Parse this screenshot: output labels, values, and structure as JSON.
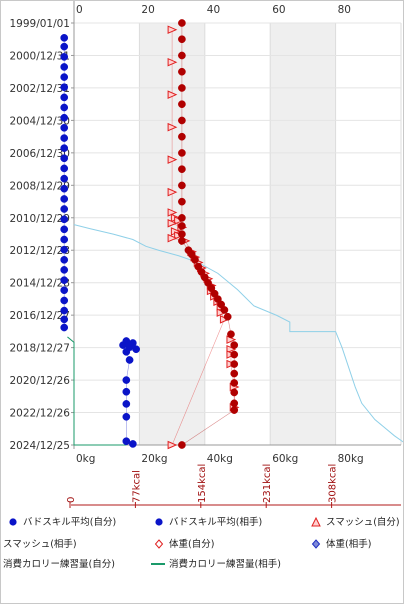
{
  "chart_data": {
    "type": "scatter",
    "x_axis_top": {
      "ticks": [
        "0",
        "20",
        "40",
        "60",
        "80",
        "10"
      ],
      "range": [
        0,
        100
      ]
    },
    "x_axis_bottom": {
      "ticks": [
        "0kg",
        "20kg",
        "40kg",
        "60kg",
        "80kg"
      ],
      "range": [
        0,
        100
      ],
      "unit": "kg"
    },
    "kcal_axis": {
      "ticks": [
        "0",
        "77kcal",
        "154kcal",
        "231kcal",
        "308kcal"
      ]
    },
    "y_axis": {
      "type": "date",
      "ticks": [
        "1999/01/01",
        "2000/12/31",
        "2002/12/31",
        "2004/12/30",
        "2006/12/30",
        "2008/12/29",
        "2010/12/29",
        "2012/12/28",
        "2014/12/28",
        "2016/12/27",
        "2018/12/27",
        "2020/12/26",
        "2022/12/26",
        "2024/12/25"
      ],
      "range": [
        "1999/01/01",
        "2024/12/25"
      ]
    },
    "shaded_bands_x": [
      [
        20,
        40
      ],
      [
        60,
        80
      ]
    ],
    "grid": true,
    "legend_position": "bottom",
    "series": [
      {
        "name": "バドスキル平均(自分)",
        "marker": "circle",
        "color": "#0a14c8",
        "points": [
          [
            -3,
            "1999/12/01"
          ],
          [
            -3,
            "2000/06/15"
          ],
          [
            -3,
            "2001/02/01"
          ],
          [
            -3,
            "2001/09/15"
          ],
          [
            -3,
            "2002/05/01"
          ],
          [
            -3,
            "2002/12/15"
          ],
          [
            -3,
            "2003/08/01"
          ],
          [
            -3,
            "2004/03/15"
          ],
          [
            -3,
            "2004/11/01"
          ],
          [
            -3,
            "2005/06/15"
          ],
          [
            -3,
            "2006/02/01"
          ],
          [
            -3,
            "2006/09/15"
          ],
          [
            -3,
            "2007/05/01"
          ],
          [
            -3,
            "2007/12/15"
          ],
          [
            -3,
            "2008/08/01"
          ],
          [
            -3,
            "2009/03/15"
          ],
          [
            -3,
            "2009/11/01"
          ],
          [
            -3,
            "2010/06/15"
          ],
          [
            -3,
            "2011/02/01"
          ],
          [
            -3,
            "2011/09/15"
          ],
          [
            -3,
            "2012/05/01"
          ],
          [
            -3,
            "2012/12/15"
          ],
          [
            -3,
            "2013/08/01"
          ],
          [
            -3,
            "2014/03/15"
          ],
          [
            -3,
            "2014/11/01"
          ],
          [
            -3,
            "2015/06/15"
          ],
          [
            -3,
            "2016/02/01"
          ],
          [
            -3,
            "2016/09/15"
          ],
          [
            -3,
            "2017/04/01"
          ],
          [
            -3,
            "2017/10/01"
          ]
        ]
      },
      {
        "name": "バドスキル平均(相手)",
        "marker": "circle",
        "color": "#0a14c8",
        "points": [
          [
            16,
            "2018/08/01"
          ],
          [
            18,
            "2018/09/15"
          ],
          [
            15,
            "2018/11/01"
          ],
          [
            17,
            "2018/12/15"
          ],
          [
            19,
            "2019/02/01"
          ],
          [
            16,
            "2019/04/01"
          ],
          [
            17,
            "2019/10/01"
          ],
          [
            16,
            "2020/12/26"
          ],
          [
            16,
            "2021/09/15"
          ],
          [
            16,
            "2022/06/15"
          ],
          [
            16,
            "2023/04/01"
          ],
          [
            16,
            "2024/10/01"
          ],
          [
            18,
            "2024/12/01"
          ]
        ]
      },
      {
        "name": "スマッシュ(自分)",
        "marker": "triangle",
        "color": "#e02020",
        "points": [
          [
            30,
            "1999/06/01"
          ],
          [
            30,
            "2001/06/01"
          ],
          [
            30,
            "2003/06/01"
          ],
          [
            30,
            "2005/06/01"
          ],
          [
            30,
            "2007/06/01"
          ],
          [
            30,
            "2009/06/01"
          ],
          [
            30,
            "2010/09/01"
          ],
          [
            31,
            "2011/01/01"
          ],
          [
            32,
            "2011/03/01"
          ],
          [
            30,
            "2011/05/01"
          ],
          [
            33,
            "2011/08/01"
          ],
          [
            31,
            "2011/11/01"
          ],
          [
            32,
            "2012/02/01"
          ],
          [
            30,
            "2012/04/01"
          ],
          [
            34,
            "2012/06/01"
          ],
          [
            36,
            "2013/02/01"
          ],
          [
            37,
            "2013/06/01"
          ],
          [
            38,
            "2013/10/01"
          ],
          [
            39,
            "2014/02/01"
          ],
          [
            40,
            "2014/06/01"
          ],
          [
            41,
            "2014/10/01"
          ],
          [
            42,
            "2015/03/01"
          ],
          [
            42,
            "2015/07/01"
          ],
          [
            43,
            "2015/11/01"
          ],
          [
            44,
            "2016/03/01"
          ],
          [
            45,
            "2016/07/01"
          ],
          [
            45,
            "2016/11/01"
          ],
          [
            46,
            "2017/04/01"
          ],
          [
            30,
            "2024/12/25"
          ]
        ]
      },
      {
        "name": "スマッシュ(相手)",
        "marker": "triangle",
        "color": "#e02020",
        "points": [
          [
            48,
            "2018/07/01"
          ],
          [
            48,
            "2019/02/01"
          ],
          [
            48,
            "2019/06/01"
          ],
          [
            48,
            "2020/01/01"
          ],
          [
            49,
            "2021/06/01"
          ],
          [
            49,
            "2022/09/01"
          ]
        ]
      },
      {
        "name": "体重(自分)",
        "marker": "circle",
        "color": "#b00000",
        "points": [
          [
            33,
            "1999/01/01"
          ],
          [
            33,
            "2000/01/01"
          ],
          [
            33,
            "2001/01/01"
          ],
          [
            33,
            "2002/01/01"
          ],
          [
            33,
            "2003/01/01"
          ],
          [
            33,
            "2004/01/01"
          ],
          [
            33,
            "2005/01/01"
          ],
          [
            33,
            "2006/01/01"
          ],
          [
            33,
            "2007/01/01"
          ],
          [
            33,
            "2008/01/01"
          ],
          [
            33,
            "2009/01/01"
          ],
          [
            33,
            "2010/01/01"
          ],
          [
            33,
            "2011/01/01"
          ],
          [
            33,
            "2011/07/01"
          ],
          [
            33,
            "2012/01/01"
          ],
          [
            33,
            "2012/06/01"
          ],
          [
            35,
            "2012/12/28"
          ],
          [
            36,
            "2013/04/01"
          ],
          [
            37,
            "2013/08/01"
          ],
          [
            38,
            "2014/01/01"
          ],
          [
            39,
            "2014/05/01"
          ],
          [
            40,
            "2014/09/01"
          ],
          [
            41,
            "2015/01/01"
          ],
          [
            42,
            "2015/05/01"
          ],
          [
            43,
            "2015/09/01"
          ],
          [
            44,
            "2016/01/01"
          ],
          [
            45,
            "2016/05/01"
          ],
          [
            46,
            "2016/09/01"
          ],
          [
            47,
            "2017/02/01"
          ],
          [
            48,
            "2018/03/01"
          ],
          [
            49,
            "2018/11/01"
          ],
          [
            49,
            "2019/06/01"
          ],
          [
            49,
            "2020/01/01"
          ],
          [
            49,
            "2020/08/01"
          ],
          [
            49,
            "2021/03/01"
          ],
          [
            49,
            "2021/10/01"
          ],
          [
            49,
            "2022/06/01"
          ],
          [
            49,
            "2022/11/01"
          ],
          [
            33,
            "2024/12/25"
          ]
        ]
      },
      {
        "name": "体重(相手)",
        "marker": "diamond",
        "color": "#2030c0",
        "points": []
      },
      {
        "name": "消費カロリー練習量(自分)",
        "line": true,
        "color": "#8fd0e8",
        "points": [
          [
            0,
            "2011/06/01"
          ],
          [
            5,
            "2011/09/01"
          ],
          [
            12,
            "2012/01/01"
          ],
          [
            18,
            "2012/05/01"
          ],
          [
            22,
            "2012/10/01"
          ],
          [
            26,
            "2013/01/01"
          ],
          [
            32,
            "2013/05/01"
          ],
          [
            38,
            "2013/10/01"
          ],
          [
            44,
            "2014/06/01"
          ],
          [
            50,
            "2015/06/01"
          ],
          [
            55,
            "2016/06/01"
          ],
          [
            62,
            "2017/01/01"
          ],
          [
            66,
            "2017/06/01"
          ],
          [
            66,
            "2018/01/01"
          ],
          [
            80,
            "2018/01/01"
          ],
          [
            82,
            "2019/01/01"
          ],
          [
            86,
            "2021/06/01"
          ],
          [
            88,
            "2022/06/01"
          ],
          [
            92,
            "2023/06/01"
          ],
          [
            98,
            "2024/06/01"
          ],
          [
            102,
            "2024/12/25"
          ]
        ]
      },
      {
        "name": "消費カロリー練習量(相手)",
        "line": true,
        "color": "#1a9a6a",
        "points": [
          [
            -2,
            "2018/05/01"
          ],
          [
            0,
            "2018/09/01"
          ],
          [
            0,
            "2024/12/25"
          ],
          [
            16,
            "2024/12/25"
          ]
        ]
      }
    ]
  },
  "legend": [
    {
      "label": "バドスキル平均(自分)",
      "icon": "circle-blue"
    },
    {
      "label": "バドスキル平均(相手)",
      "icon": "circle-blue-solid"
    },
    {
      "label": "スマッシュ(自分)",
      "icon": "triangle-red"
    },
    {
      "label": "スマッシュ(相手)",
      "icon": "none"
    },
    {
      "label": "体重(自分)",
      "icon": "diamond-red"
    },
    {
      "label": "体重(相手)",
      "icon": "diamond-blue"
    },
    {
      "label": "消費カロリー練習量(自分)",
      "icon": "none"
    },
    {
      "label": "消費カロリー練習量(相手)",
      "icon": "line-green"
    }
  ]
}
